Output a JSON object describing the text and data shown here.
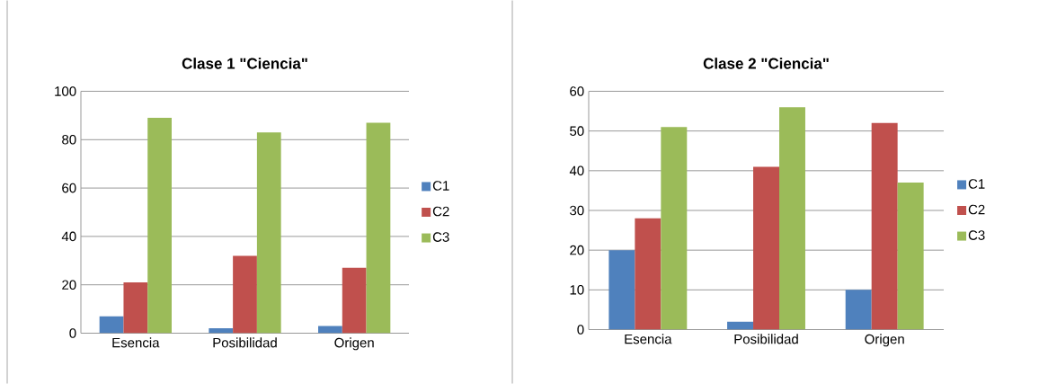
{
  "chart_data": [
    {
      "type": "bar",
      "title": "Clase 1 \"Ciencia\"",
      "categories": [
        "Esencia",
        "Posibilidad",
        "Origen"
      ],
      "ylim": [
        0,
        100
      ],
      "yticks": [
        0,
        20,
        40,
        60,
        80,
        100
      ],
      "grid": "y",
      "legend": "right",
      "series": [
        {
          "name": "C1",
          "color": "#4f81bd",
          "values": [
            7,
            2,
            3
          ]
        },
        {
          "name": "C2",
          "color": "#c0504d",
          "values": [
            21,
            32,
            27
          ]
        },
        {
          "name": "C3",
          "color": "#9bbb59",
          "values": [
            89,
            83,
            87
          ]
        }
      ]
    },
    {
      "type": "bar",
      "title": "Clase 2 \"Ciencia\"",
      "categories": [
        "Esencia",
        "Posibilidad",
        "Origen"
      ],
      "ylim": [
        0,
        60
      ],
      "yticks": [
        0,
        10,
        20,
        30,
        40,
        50,
        60
      ],
      "grid": "y",
      "legend": "right",
      "series": [
        {
          "name": "C1",
          "color": "#4f81bd",
          "values": [
            20,
            2,
            10
          ]
        },
        {
          "name": "C2",
          "color": "#c0504d",
          "values": [
            28,
            41,
            52
          ]
        },
        {
          "name": "C3",
          "color": "#9bbb59",
          "values": [
            51,
            56,
            37
          ]
        }
      ]
    }
  ]
}
